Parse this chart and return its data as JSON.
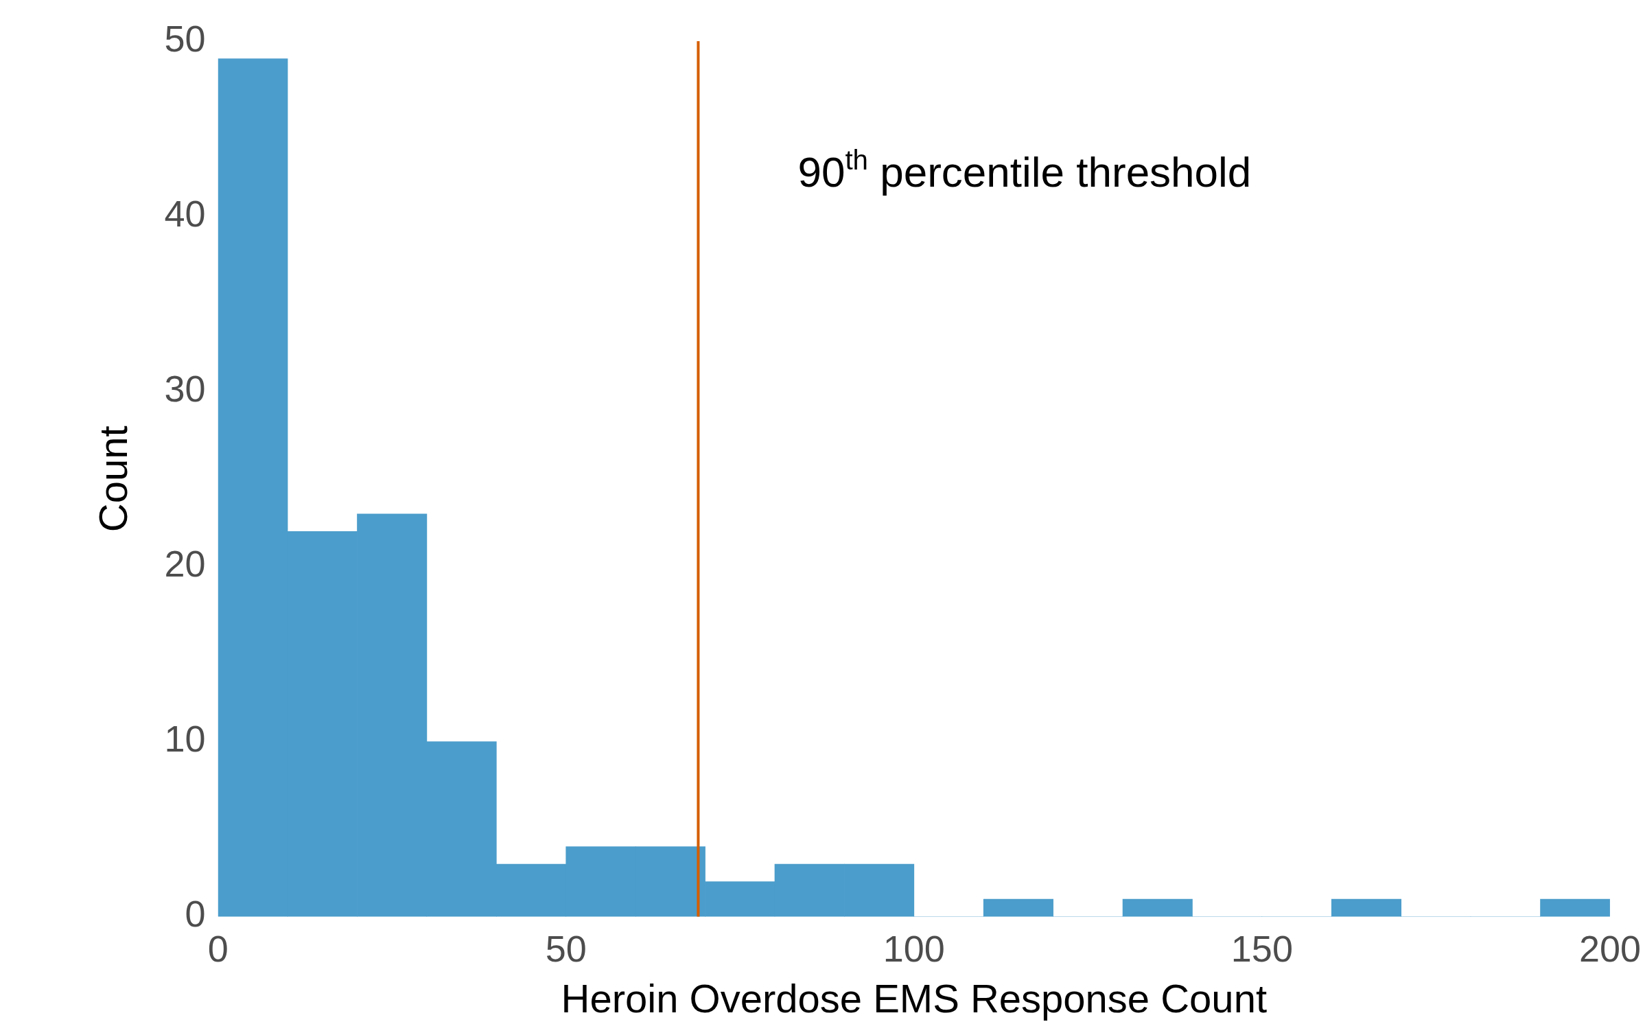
{
  "chart_data": {
    "type": "histogram",
    "xlabel": "Heroin Overdose EMS Response Count",
    "ylabel": "Count",
    "bins": [
      0,
      10,
      20,
      30,
      40,
      50,
      60,
      70,
      80,
      90,
      100,
      110,
      120,
      130,
      140,
      150,
      160,
      170,
      180,
      190,
      200
    ],
    "values": [
      49,
      22,
      23,
      10,
      3,
      4,
      4,
      2,
      3,
      3,
      0,
      1,
      0,
      1,
      0,
      0,
      1,
      0,
      0,
      1
    ],
    "color": "#4b9dcb",
    "xlim": [
      0,
      200
    ],
    "xticks": [
      0,
      50,
      100,
      150,
      200
    ],
    "ylim": [
      0,
      50
    ],
    "yticks": [
      0,
      10,
      20,
      30,
      40,
      50
    ],
    "grid": false,
    "ref_lines": [
      {
        "axis": "x",
        "value": 69,
        "label": "90$^{th}$ percentile threshold",
        "color": "#d55e00"
      }
    ]
  }
}
